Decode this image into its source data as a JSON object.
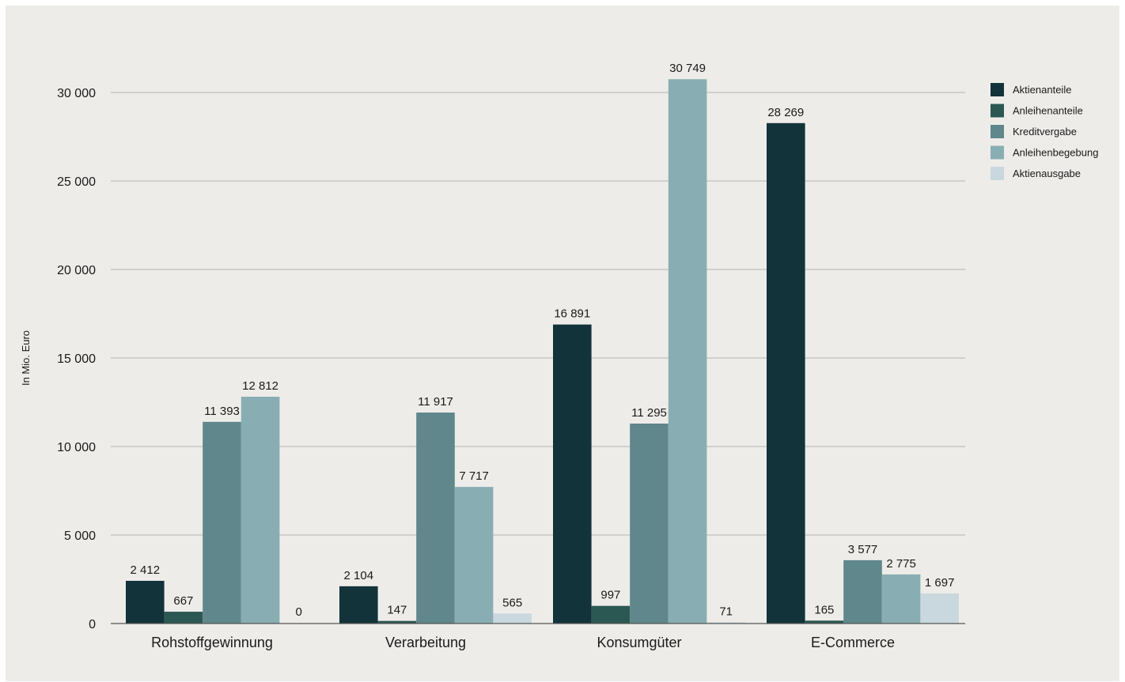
{
  "chart_data": {
    "type": "bar",
    "title": "",
    "xlabel": "",
    "ylabel": "In Mio. Euro",
    "ylim": [
      0,
      30000
    ],
    "yticks": [
      0,
      5000,
      10000,
      15000,
      20000,
      25000,
      30000
    ],
    "ytick_labels": [
      "0",
      "5 000",
      "10 000",
      "15 000",
      "20 000",
      "25 000",
      "30 000"
    ],
    "grid": true,
    "legend_position": "right",
    "categories": [
      "Rohstoffgewinnung",
      "Verarbeitung",
      "Konsumgüter",
      "E-Commerce"
    ],
    "series": [
      {
        "name": "Aktienanteile",
        "color": "#12333a",
        "values": [
          2412,
          2104,
          16891,
          28269
        ],
        "labels": [
          "2 412",
          "2 104",
          "16 891",
          "28 269"
        ]
      },
      {
        "name": "Anleihenanteile",
        "color": "#2c5853",
        "values": [
          667,
          147,
          997,
          165
        ],
        "labels": [
          "667",
          "147",
          "997",
          "165"
        ]
      },
      {
        "name": "Kreditvergabe",
        "color": "#5f878c",
        "values": [
          11393,
          11917,
          11295,
          3577
        ],
        "labels": [
          "11 393",
          "11 917",
          "11 295",
          "3 577"
        ]
      },
      {
        "name": "Anleihenbegebung",
        "color": "#88aeb3",
        "values": [
          12812,
          7717,
          30749,
          2775
        ],
        "labels": [
          "12 812",
          "7 717",
          "30 749",
          "2 775"
        ]
      },
      {
        "name": "Aktienausgabe",
        "color": "#c9d8de",
        "values": [
          0,
          565,
          71,
          1697
        ],
        "labels": [
          "0",
          "565",
          "71",
          "1 697"
        ]
      }
    ]
  }
}
